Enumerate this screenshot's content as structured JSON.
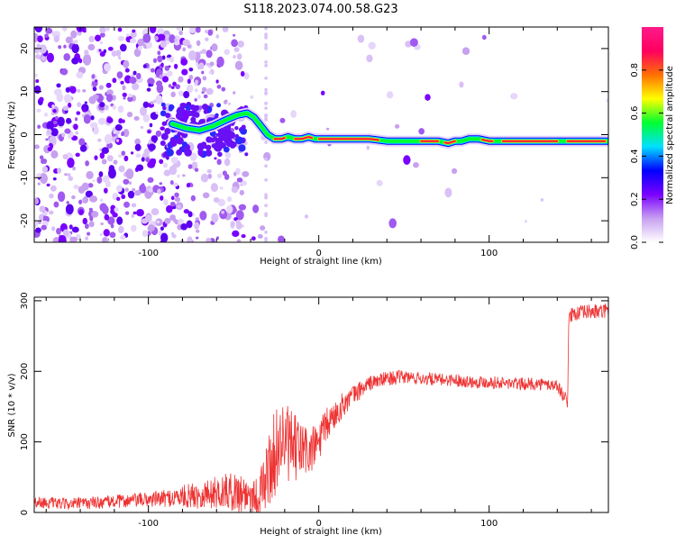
{
  "title": "S118.2023.074.00.58.G23",
  "chart_data": [
    {
      "type": "heatmap",
      "xlabel": "Height of straight line (km)",
      "ylabel": "Frequency (Hz)",
      "xlim": [
        -167,
        170
      ],
      "ylim": [
        -25,
        25
      ],
      "x_ticks": [
        -100,
        0,
        100
      ],
      "y_ticks": [
        -20,
        -10,
        0,
        10,
        20
      ],
      "ridge": {
        "x": [
          -86,
          -78,
          -70,
          -62,
          -54,
          -48,
          -42,
          -38,
          -34,
          -30,
          -26,
          -22,
          -18,
          -14,
          -10,
          -6,
          -2,
          10,
          20,
          30,
          40,
          50,
          60,
          70,
          76,
          80,
          84,
          88,
          94,
          100,
          110,
          120,
          130,
          140,
          150,
          160,
          170
        ],
        "y": [
          2.5,
          1.5,
          1,
          2,
          3.5,
          4.5,
          5,
          4,
          2,
          0,
          -1,
          -1,
          -0.5,
          -1,
          -1,
          -0.5,
          -1,
          -1,
          -1,
          -1,
          -1.5,
          -1.5,
          -1.5,
          -1.5,
          -2,
          -1.5,
          -1.5,
          -1,
          -1,
          -1.5,
          -1.5,
          -1.5,
          -1.5,
          -1.5,
          -1.5,
          -1.5,
          -1.5
        ]
      },
      "colorbar": {
        "label": "Normalized spectral amplitude",
        "ticks": [
          "0.0",
          "0.2",
          "0.4",
          "0.6",
          "0.8"
        ],
        "range": [
          0,
          1
        ],
        "colors": [
          "#ffffff",
          "#c7a0f0",
          "#7a00ff",
          "#0000ff",
          "#00e0ff",
          "#00ff30",
          "#ffff00",
          "#ff7000",
          "#ff0060",
          "#ff1a8a"
        ]
      }
    },
    {
      "type": "line",
      "xlabel": "Height of straight line (km)",
      "ylabel": "SNR (10 * v/v)",
      "xlim": [
        -167,
        170
      ],
      "ylim": [
        0,
        305
      ],
      "x_ticks": [
        -100,
        0,
        100
      ],
      "y_ticks": [
        0,
        100,
        200,
        300
      ],
      "color": "#ee3333",
      "series": [
        {
          "x": [
            -167,
            -150,
            -130,
            -110,
            -90,
            -70,
            -55,
            -45,
            -35,
            -28,
            -22,
            -15,
            -10,
            -5,
            0,
            5,
            10,
            15,
            20,
            25,
            30,
            40,
            50,
            60,
            70,
            80,
            90,
            100,
            110,
            120,
            130,
            140,
            143,
            146,
            147,
            150,
            155,
            160,
            165,
            170
          ],
          "y": [
            15,
            12,
            14,
            17,
            20,
            25,
            30,
            28,
            22,
            70,
            105,
            90,
            90,
            85,
            100,
            125,
            140,
            155,
            165,
            175,
            183,
            190,
            192,
            190,
            188,
            188,
            185,
            185,
            183,
            182,
            182,
            180,
            168,
            157,
            280,
            282,
            283,
            285,
            284,
            286
          ],
          "noise": [
            8,
            8,
            9,
            10,
            12,
            20,
            25,
            30,
            30,
            60,
            60,
            50,
            45,
            35,
            30,
            25,
            20,
            18,
            15,
            13,
            11,
            10,
            10,
            9,
            9,
            9,
            9,
            9,
            9,
            9,
            9,
            9,
            9,
            9,
            11,
            11,
            11,
            11,
            11,
            11
          ]
        }
      ]
    }
  ]
}
